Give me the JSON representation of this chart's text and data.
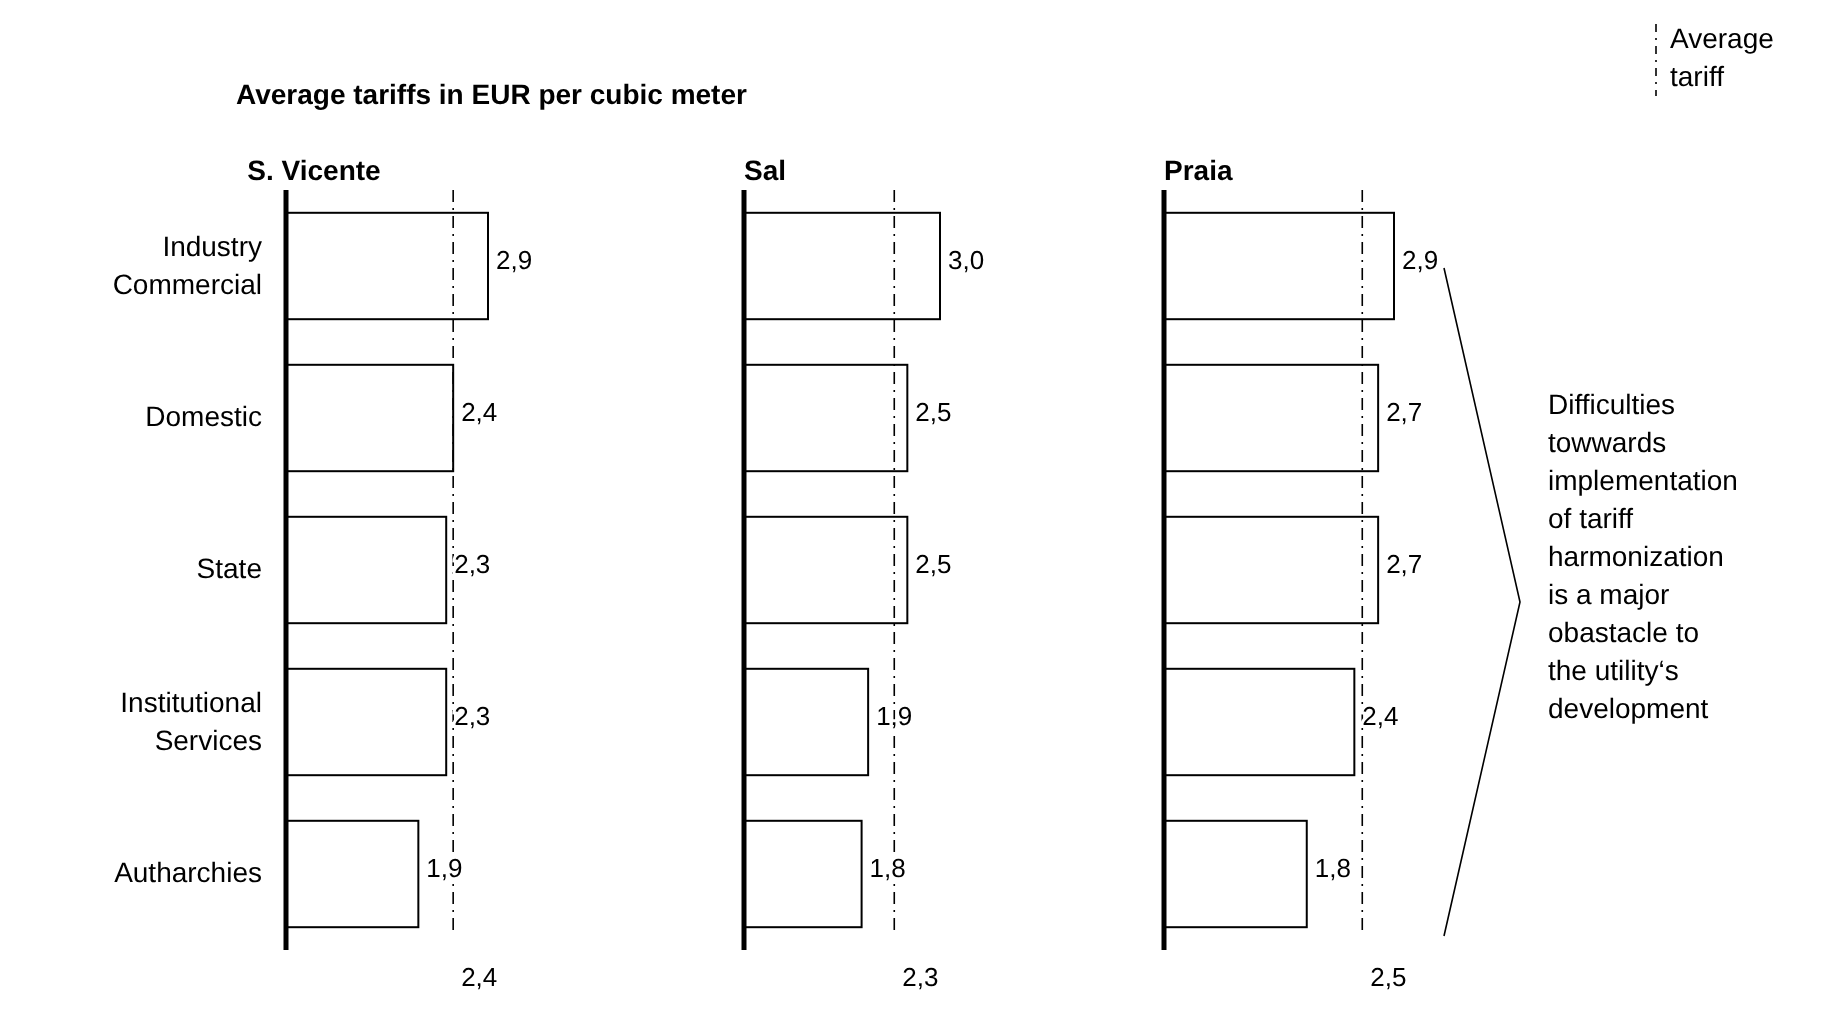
{
  "chart_data": [
    {
      "type": "bar",
      "orientation": "horizontal",
      "title": "Average tariffs in EUR per cubic meter",
      "subtitle": "S. Vicente",
      "categories": [
        "Industry Commercial",
        "Domestic",
        "State",
        "Institutional Services",
        "Autharchies"
      ],
      "values": [
        2.9,
        2.4,
        2.3,
        2.3,
        1.9
      ],
      "value_labels": [
        "2,9",
        "2,4",
        "2,3",
        "2,3",
        "1,9"
      ],
      "color": "#ffffff",
      "ref_lines": [
        {
          "axis": "x",
          "value": 2.4,
          "label": "2,4",
          "line_style": "dashed",
          "color": "#000000"
        }
      ],
      "tick_labels": "y"
    },
    {
      "type": "bar",
      "orientation": "horizontal",
      "title": "Sal",
      "categories": [
        null,
        null,
        null,
        null,
        null
      ],
      "values": [
        3.0,
        2.5,
        2.5,
        1.9,
        1.8
      ],
      "value_labels": [
        "3,0",
        "2,5",
        "2,5",
        "1,9",
        "1,8"
      ],
      "color": "#ffffff",
      "ref_lines": [
        {
          "axis": "x",
          "value": 2.3,
          "label": "2,3",
          "line_style": "dashed",
          "color": "#000000"
        }
      ],
      "tick_labels": false
    },
    {
      "type": "bar",
      "orientation": "horizontal",
      "title": "Praia",
      "categories": [
        null,
        null,
        null,
        null,
        null
      ],
      "values": [
        2.9,
        2.7,
        2.7,
        2.4,
        1.8
      ],
      "value_labels": [
        "2,9",
        "2,7",
        "2,7",
        "2,4",
        "1,8"
      ],
      "color": "#ffffff",
      "ref_lines": [
        {
          "axis": "x",
          "value": 2.5,
          "label": "2,5",
          "line_style": "dashed",
          "color": "#000000"
        }
      ],
      "tick_labels": false,
      "annotations": [
        "Average tariff",
        "Difficulties towwards implementation of tariff harmonization is a major obastacle to the utility‘s development"
      ]
    }
  ]
}
